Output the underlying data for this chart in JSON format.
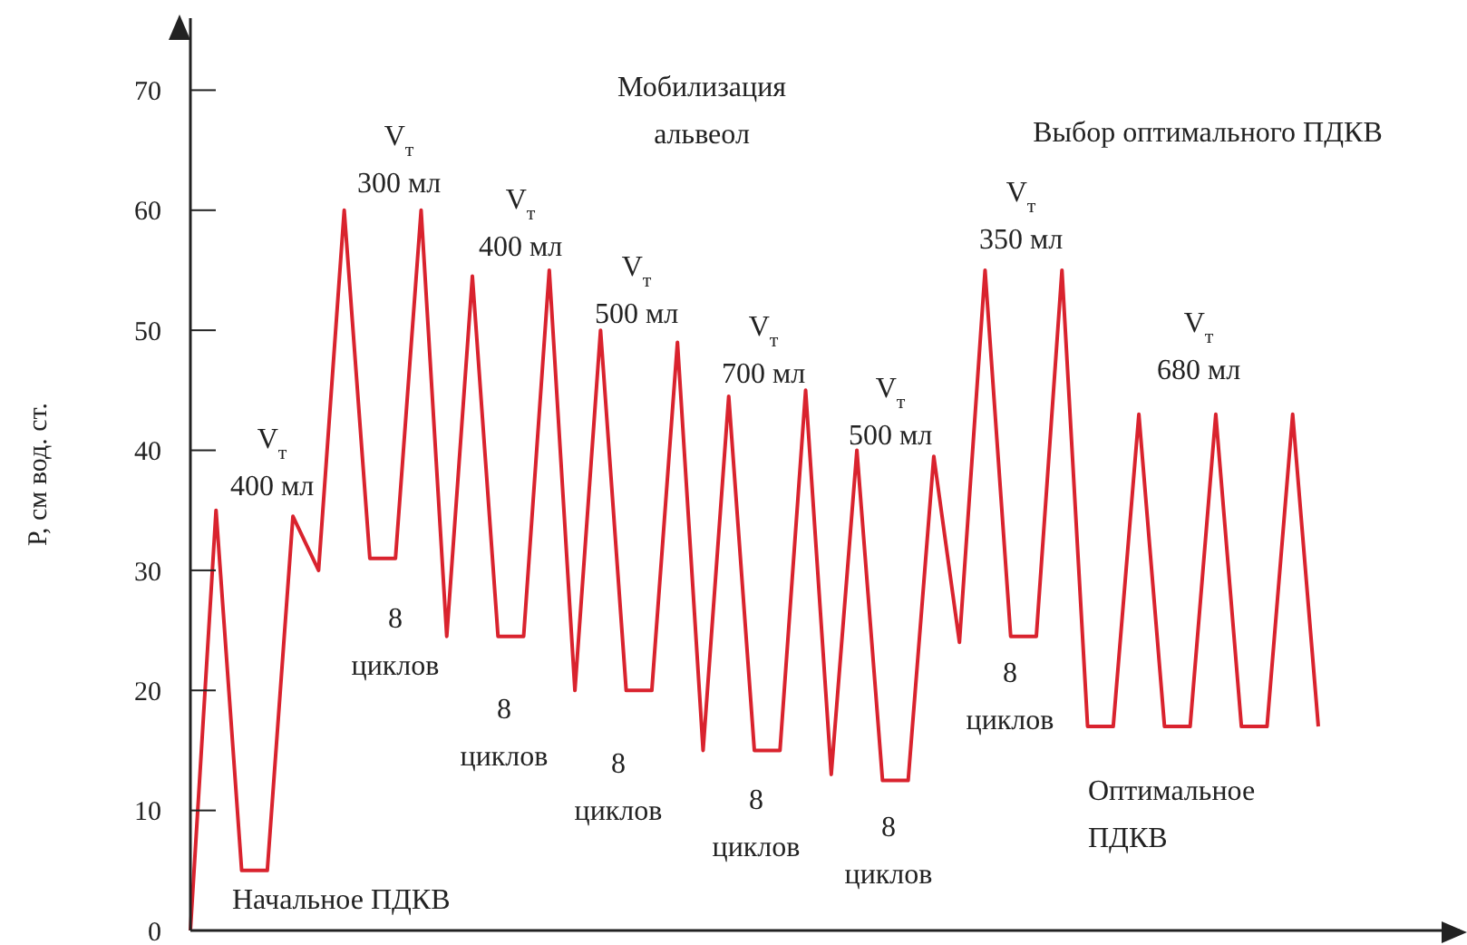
{
  "chart_data": {
    "type": "line",
    "ylabel": "Р, см вод. ст.",
    "categories": [
      null,
      null,
      null,
      null,
      null,
      null,
      null,
      null,
      null,
      null,
      null,
      null,
      null,
      null,
      null,
      null,
      null,
      null,
      null,
      null,
      null,
      null,
      null,
      null,
      null,
      null,
      null,
      null,
      null,
      null,
      null,
      null,
      null,
      null,
      null,
      null,
      null,
      null,
      null,
      null,
      null,
      null,
      null,
      null,
      null
    ],
    "series": [
      {
        "color": "#d9232e",
        "values": [
          0,
          35,
          5,
          5,
          34.5,
          30,
          60,
          31,
          31,
          60,
          24.5,
          54.5,
          24.5,
          24.5,
          55,
          20,
          50,
          20,
          20,
          49,
          15,
          44.5,
          15,
          15,
          45,
          13,
          40,
          12.5,
          12.5,
          39.5,
          24,
          55,
          24.5,
          24.5,
          55,
          17,
          17,
          43,
          17,
          17,
          43,
          17,
          17,
          43,
          17
        ]
      }
    ],
    "ylim": [
      0,
      76
    ],
    "yticks": [
      0,
      10,
      20,
      30,
      40,
      50,
      60,
      70
    ],
    "tick_labels": "y",
    "grid": false,
    "legend": false,
    "marker": "none",
    "line_style": "solid",
    "annotations": [
      "V$_{т}$\n400 мл",
      "V$_{т}$\n300 мл",
      "V$_{т}$\n400 мл",
      "V$_{т}$\n500 мл",
      "V$_{т}$\n700 мл",
      "V$_{т}$\n500 мл",
      "V$_{т}$\n350 мл",
      "V$_{т}$\n680 мл",
      "Мобилизация\nальвеол",
      "Выбор оптимального ПДКВ",
      "8\nциклов",
      "8\nциклов",
      "8\nциклов",
      "8\nциклов",
      "8\nциклов",
      "8\nциклов",
      "Оптимальное\nПДКВ",
      "Начальное ПДКВ"
    ]
  }
}
